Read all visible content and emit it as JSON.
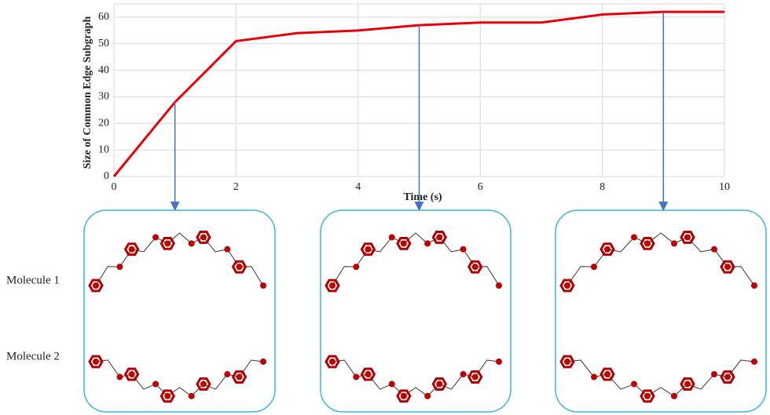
{
  "chart_data": {
    "type": "line",
    "x_label": "Time (s)",
    "y_label": "Size of Common Edge Subgraph",
    "x": [
      0,
      1,
      2,
      3,
      4,
      5,
      6,
      7,
      8,
      9,
      10
    ],
    "series": [
      {
        "color": "#e8000b",
        "values": [
          0,
          28,
          51,
          54,
          55,
          57,
          58,
          58,
          61,
          62,
          62
        ]
      }
    ],
    "xlim": [
      0,
      10
    ],
    "ylim": [
      0,
      65
    ],
    "xticks": [
      0,
      2,
      4,
      6,
      8,
      10
    ],
    "yticks": [
      0,
      10,
      20,
      30,
      40,
      50,
      60
    ],
    "grid": true,
    "highlight_x": [
      1,
      5,
      9
    ],
    "row_labels": [
      "Molecule 1",
      "Molecule 2"
    ]
  }
}
